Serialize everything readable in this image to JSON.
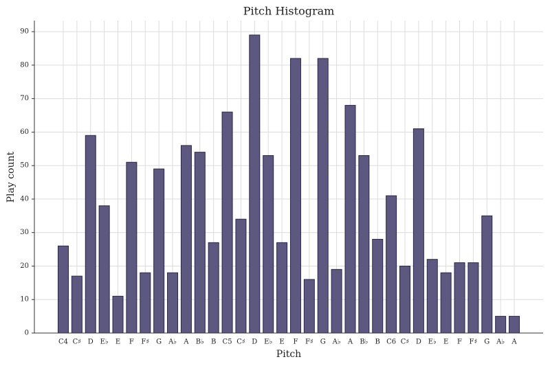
{
  "chart_data": {
    "type": "bar",
    "title": "Pitch Histogram",
    "x_label": "Pitch",
    "y_label": "Play count",
    "categories": [
      "C4",
      "C♯",
      "D",
      "E♭",
      "E",
      "F",
      "F♯",
      "G",
      "A♭",
      "A",
      "B♭",
      "B",
      "C5",
      "C♯",
      "D",
      "E♭",
      "E",
      "F",
      "F♯",
      "G",
      "A♭",
      "A",
      "B♭",
      "B",
      "C6",
      "C♯",
      "D",
      "E♭",
      "E",
      "F",
      "F♯",
      "G",
      "A♭",
      "A"
    ],
    "values": [
      26,
      17,
      59,
      38,
      11,
      51,
      18,
      49,
      18,
      56,
      54,
      27,
      66,
      34,
      89,
      53,
      27,
      82,
      16,
      82,
      19,
      68,
      53,
      28,
      41,
      20,
      61,
      22,
      18,
      21,
      21,
      35,
      5,
      5
    ],
    "color": "#5c5880",
    "ylim": [
      0,
      93.3
    ],
    "yticks": [
      0,
      10,
      20,
      30,
      40,
      50,
      60,
      70,
      80,
      90
    ],
    "grid": true
  }
}
